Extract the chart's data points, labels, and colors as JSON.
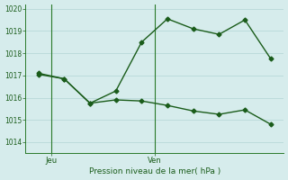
{
  "xlabel": "Pression niveau de la mer( hPa )",
  "bg_color": "#d6ecec",
  "grid_color": "#b8d8d8",
  "line_color": "#1a5c1a",
  "spine_color": "#2a7a2a",
  "ylim": [
    1013.5,
    1020.2
  ],
  "yticks": [
    1014,
    1015,
    1016,
    1017,
    1018,
    1019,
    1020
  ],
  "xtick_labels": [
    "Jeu",
    "Ven"
  ],
  "xtick_positions": [
    1,
    5
  ],
  "vline_positions": [
    1,
    5
  ],
  "xlim": [
    0,
    10
  ],
  "series1_x": [
    0.5,
    1.5,
    2.5,
    3.5,
    4.5,
    5.5,
    6.5,
    7.5,
    8.5,
    9.5
  ],
  "series1_y": [
    1017.1,
    1016.85,
    1015.75,
    1016.3,
    1018.5,
    1019.55,
    1019.1,
    1018.85,
    1019.5,
    1017.75
  ],
  "series2_x": [
    0.5,
    1.5,
    2.5,
    3.5,
    4.5,
    5.5,
    6.5,
    7.5,
    8.5,
    9.5
  ],
  "series2_y": [
    1017.05,
    1016.85,
    1015.75,
    1015.9,
    1015.85,
    1015.65,
    1015.4,
    1015.25,
    1015.45,
    1014.8
  ]
}
